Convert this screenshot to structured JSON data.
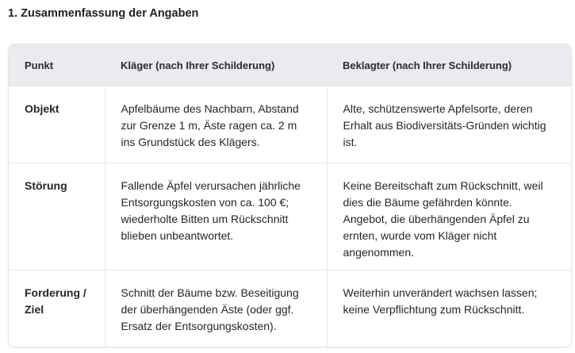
{
  "title": "1. Zusammenfassung der Angaben",
  "table": {
    "headers": [
      "Punkt",
      "Kläger (nach Ihrer Schilderung)",
      "Beklagter (nach Ihrer Schilderung)"
    ],
    "rows": [
      [
        "Objekt",
        "Apfelbäume des Nachbarn, Abstand zur Grenze 1 m, Äste ragen ca. 2 m ins Grundstück des Klägers.",
        "Alte, schützenswerte Apfelsorte, deren Erhalt aus Biodiversitäts-Gründen wichtig ist."
      ],
      [
        "Störung",
        "Fallende Äpfel verursachen jährliche Entsorgungskosten von ca. 100 €; wiederholte Bitten um Rückschnitt blieben unbeantwortet.",
        "Keine Bereitschaft zum Rückschnitt, weil dies die Bäume gefährden könnte. Angebot, die überhängenden Äpfel zu ernten, wurde vom Kläger nicht angenommen."
      ],
      [
        "Forderung / Ziel",
        "Schnitt der Bäume bzw. Beseitigung der überhängenden Äste (oder ggf. Ersatz der Entsorgungskosten).",
        "Weiterhin unverändert wachsen lassen; keine Verpflichtung zum Rückschnitt."
      ]
    ]
  }
}
